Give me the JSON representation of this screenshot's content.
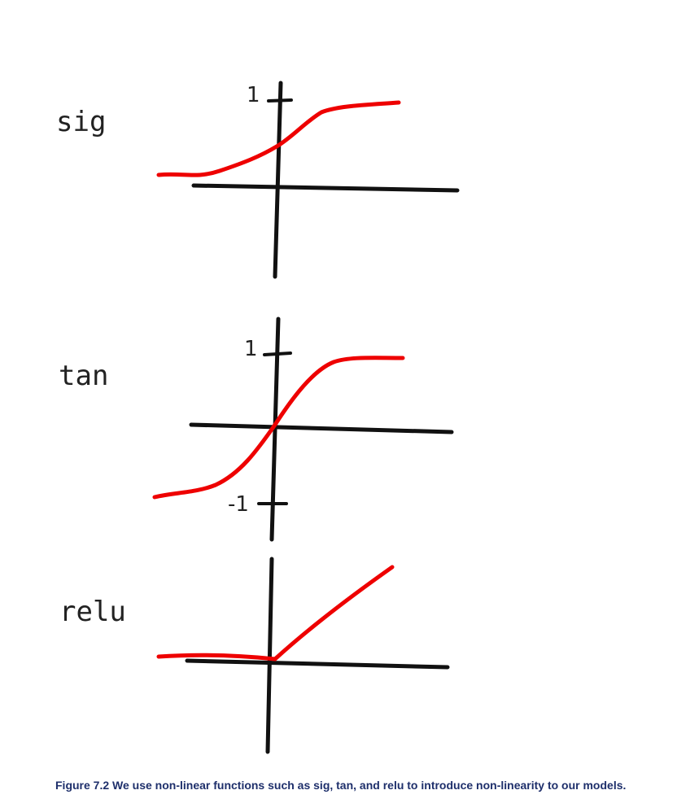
{
  "panels": [
    {
      "label": "sig",
      "tick_top": "1",
      "tick_bottom": ""
    },
    {
      "label": "tan",
      "tick_top": "1",
      "tick_bottom": "-1"
    },
    {
      "label": "relu",
      "tick_top": "",
      "tick_bottom": ""
    }
  ],
  "caption": "Figure 7.2 We use non-linear functions such as sig, tan, and relu to introduce non-linearity to our models.",
  "colors": {
    "curve": "#ee0000",
    "axes": "#111111",
    "caption": "#1e2f6b"
  }
}
